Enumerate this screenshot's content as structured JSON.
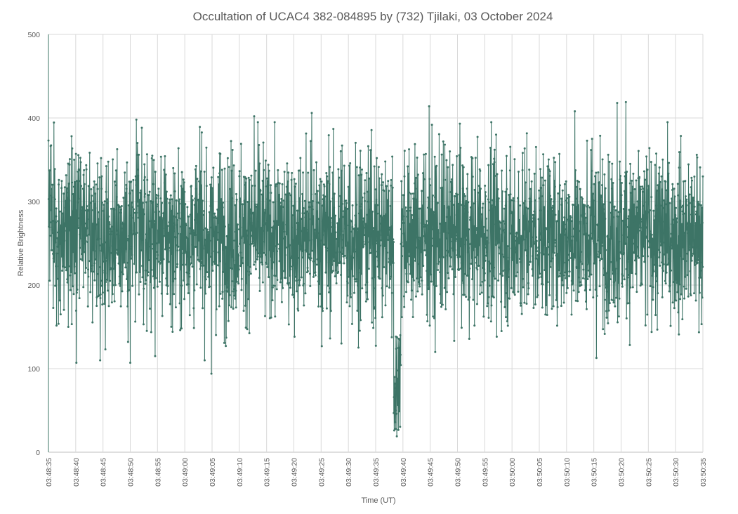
{
  "chart_data": {
    "type": "line",
    "title": "Occultation of UCAC4 382-084895 by (732) Tjilaki, 03 October 2024",
    "xlabel": "Time (UT)",
    "ylabel": "Relative Brightness",
    "ylim": [
      0,
      500
    ],
    "yticks": [
      "0",
      "100",
      "200",
      "300",
      "400",
      "500"
    ],
    "xlim": [
      "03:48:35",
      "03:50:35"
    ],
    "xticks": [
      "03:48:35",
      "03:48:40",
      "03:48:45",
      "03:48:50",
      "03:48:55",
      "03:49:00",
      "03:49:05",
      "03:49:10",
      "03:49:15",
      "03:49:20",
      "03:49:25",
      "03:49:30",
      "03:49:35",
      "03:49:40",
      "03:49:45",
      "03:49:50",
      "03:49:55",
      "03:50:00",
      "03:50:05",
      "03:50:10",
      "03:50:15",
      "03:50:20",
      "03:50:25",
      "03:50:30",
      "03:50:35"
    ],
    "grid": true,
    "legend": "none",
    "color": "#3d7466",
    "series": [
      {
        "sample_interval_s": 0.04,
        "baseline_mean": 260,
        "noise_sd": 50,
        "samples": 3001,
        "key_points": [
          {
            "x": "03:48:35.0",
            "y": 373
          },
          {
            "x": "03:48:40.1",
            "y": 107
          },
          {
            "x": "03:48:50.0",
            "y": 107
          },
          {
            "x": "03:48:51.1",
            "y": 398
          },
          {
            "x": "03:49:04.9",
            "y": 94
          },
          {
            "x": "03:49:12.7",
            "y": 402
          },
          {
            "x": "03:49:23.3",
            "y": 406
          },
          {
            "x": "03:49:38.4",
            "y": 26
          },
          {
            "x": "03:49:38.6",
            "y": 50
          },
          {
            "x": "03:49:38.9",
            "y": 19
          },
          {
            "x": "03:49:39.1",
            "y": 80
          },
          {
            "x": "03:49:39.5",
            "y": 140
          },
          {
            "x": "03:49:44.8",
            "y": 414
          },
          {
            "x": "03:50:11.5",
            "y": 408
          },
          {
            "x": "03:50:19.3",
            "y": 418
          },
          {
            "x": "03:50:20.9",
            "y": 419
          },
          {
            "x": "03:50:35.0",
            "y": 330
          }
        ]
      }
    ]
  }
}
